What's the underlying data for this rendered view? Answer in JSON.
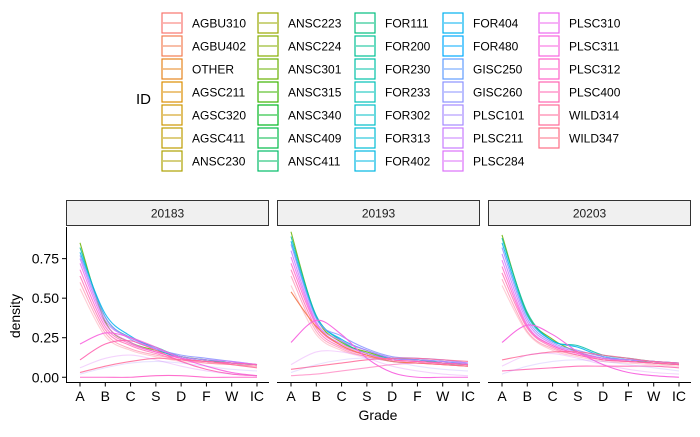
{
  "chart_data": {
    "type": "area",
    "legend": {
      "title": "ID",
      "position": "top",
      "entries": [
        {
          "label": "AGBU310",
          "color": "#F8766D"
        },
        {
          "label": "AGBU402",
          "color": "#F27D52"
        },
        {
          "label": "OTHER",
          "color": "#E7851E"
        },
        {
          "label": "AGSC211",
          "color": "#DB8E00"
        },
        {
          "label": "AGSC320",
          "color": "#CD9600"
        },
        {
          "label": "AGSC411",
          "color": "#BE9C00"
        },
        {
          "label": "ANSC230",
          "color": "#AEA200"
        },
        {
          "label": "ANSC223",
          "color": "#9AA800"
        },
        {
          "label": "ANSC224",
          "color": "#85AD00"
        },
        {
          "label": "ANSC301",
          "color": "#68B100"
        },
        {
          "label": "ANSC315",
          "color": "#3CB400"
        },
        {
          "label": "ANSC340",
          "color": "#00B81F"
        },
        {
          "label": "ANSC409",
          "color": "#00BA48"
        },
        {
          "label": "ANSC411",
          "color": "#00BC67"
        },
        {
          "label": "FOR111",
          "color": "#00BE7F"
        },
        {
          "label": "FOR200",
          "color": "#00C094"
        },
        {
          "label": "FOR230",
          "color": "#00C0A7"
        },
        {
          "label": "FOR233",
          "color": "#00C0B8"
        },
        {
          "label": "FOR302",
          "color": "#00BFC7"
        },
        {
          "label": "FOR313",
          "color": "#00BCD6"
        },
        {
          "label": "FOR402",
          "color": "#00B8E3"
        },
        {
          "label": "FOR404",
          "color": "#00B2F0"
        },
        {
          "label": "FOR480",
          "color": "#00ABFD"
        },
        {
          "label": "GISC250",
          "color": "#619CFF"
        },
        {
          "label": "GISC260",
          "color": "#8B93FF"
        },
        {
          "label": "PLSC101",
          "color": "#A58AFF"
        },
        {
          "label": "PLSC211",
          "color": "#C77CFF"
        },
        {
          "label": "PLSC284",
          "color": "#DC71FA"
        },
        {
          "label": "PLSC310",
          "color": "#EC69EF"
        },
        {
          "label": "PLSC311",
          "color": "#F863DF"
        },
        {
          "label": "PLSC312",
          "color": "#FF61C9"
        },
        {
          "label": "PLSC400",
          "color": "#FF64B0"
        },
        {
          "label": "WILD314",
          "color": "#FF6A98"
        },
        {
          "label": "WILD347",
          "color": "#FD6F85"
        }
      ]
    },
    "xlabel": "Grade",
    "ylabel": "density",
    "x_categories": [
      "A",
      "B",
      "C",
      "S",
      "D",
      "F",
      "W",
      "IC"
    ],
    "yticks": [
      0.0,
      0.25,
      0.5,
      0.75
    ],
    "ytick_labels": [
      "0.00",
      "0.25",
      "0.50",
      "0.75"
    ],
    "ylim": [
      -0.03,
      0.95
    ],
    "grid": false,
    "panels": [
      {
        "label": "20183",
        "series": [
          {
            "name": "ANSC301",
            "color": "#68B100",
            "opacity": 0.85,
            "values": [
              0.85,
              0.35,
              0.22,
              0.17,
              0.13,
              0.11,
              0.09,
              0.08
            ]
          },
          {
            "name": "FOR230",
            "color": "#00C0A7",
            "opacity": 0.85,
            "values": [
              0.82,
              0.38,
              0.25,
              0.19,
              0.13,
              0.11,
              0.09,
              0.08
            ]
          },
          {
            "name": "FOR404",
            "color": "#00B2F0",
            "opacity": 0.85,
            "values": [
              0.79,
              0.4,
              0.26,
              0.18,
              0.12,
              0.1,
              0.09,
              0.08
            ]
          },
          {
            "name": "GISC260",
            "color": "#8B93FF",
            "opacity": 0.85,
            "values": [
              0.77,
              0.38,
              0.24,
              0.18,
              0.14,
              0.12,
              0.1,
              0.08
            ]
          },
          {
            "name": "PLSC211",
            "color": "#C77CFF",
            "opacity": 0.85,
            "values": [
              0.75,
              0.36,
              0.25,
              0.18,
              0.13,
              0.11,
              0.1,
              0.08
            ]
          },
          {
            "name": "PLSC310",
            "color": "#EC69EF",
            "opacity": 0.8,
            "values": [
              0.72,
              0.34,
              0.22,
              0.16,
              0.12,
              0.1,
              0.09,
              0.08
            ]
          },
          {
            "name": "PLSC312",
            "color": "#FF61C9",
            "opacity": 0.8,
            "values": [
              0.68,
              0.32,
              0.21,
              0.16,
              0.12,
              0.1,
              0.09,
              0.08
            ]
          },
          {
            "name": "PLSC400",
            "color": "#FF64B0",
            "opacity": 0.75,
            "values": [
              0.64,
              0.3,
              0.2,
              0.15,
              0.11,
              0.1,
              0.09,
              0.08
            ]
          },
          {
            "name": "WILD314",
            "color": "#FF6A98",
            "opacity": 0.55,
            "values": [
              0.6,
              0.28,
              0.18,
              0.14,
              0.11,
              0.09,
              0.08,
              0.07
            ]
          },
          {
            "name": "WILD347",
            "color": "#FD6F85",
            "opacity": 0.35,
            "values": [
              0.56,
              0.26,
              0.17,
              0.13,
              0.1,
              0.09,
              0.08,
              0.07
            ]
          },
          {
            "name": "PLSC311",
            "color": "#F863DF",
            "opacity": 0.9,
            "values": [
              0.21,
              0.28,
              0.25,
              0.19,
              0.12,
              0.07,
              0.03,
              0.01
            ]
          },
          {
            "name": "PLSC400",
            "color": "#FF64B0",
            "opacity": 0.9,
            "values": [
              0.11,
              0.21,
              0.23,
              0.17,
              0.1,
              0.05,
              0.02,
              0.01
            ]
          },
          {
            "name": "WILD314",
            "color": "#FF6A98",
            "opacity": 0.85,
            "values": [
              0.03,
              0.07,
              0.1,
              0.12,
              0.11,
              0.1,
              0.08,
              0.06
            ]
          },
          {
            "name": "PLSC312",
            "color": "#FF61C9",
            "opacity": 0.9,
            "values": [
              0.0,
              0.0,
              0.0,
              0.01,
              0.01,
              0.0,
              0.0,
              0.0
            ]
          },
          {
            "name": "PLSC284",
            "color": "#DC71FA",
            "opacity": 0.3,
            "values": [
              0.06,
              0.12,
              0.14,
              0.11,
              0.07,
              0.04,
              0.02,
              0.01
            ]
          },
          {
            "name": "PLSC101",
            "color": "#A58AFF",
            "opacity": 0.25,
            "values": [
              0.02,
              0.06,
              0.09,
              0.1,
              0.09,
              0.07,
              0.05,
              0.04
            ]
          }
        ]
      },
      {
        "label": "20193",
        "series": [
          {
            "name": "ANSC301",
            "color": "#68B100",
            "opacity": 0.85,
            "values": [
              0.92,
              0.38,
              0.22,
              0.16,
              0.12,
              0.11,
              0.09,
              0.08
            ]
          },
          {
            "name": "FOR230",
            "color": "#00C0A7",
            "opacity": 0.85,
            "values": [
              0.89,
              0.39,
              0.23,
              0.15,
              0.12,
              0.11,
              0.09,
              0.08
            ]
          },
          {
            "name": "FOR404",
            "color": "#00B2F0",
            "opacity": 0.85,
            "values": [
              0.86,
              0.38,
              0.24,
              0.17,
              0.12,
              0.11,
              0.1,
              0.08
            ]
          },
          {
            "name": "GISC260",
            "color": "#8B93FF",
            "opacity": 0.85,
            "values": [
              0.84,
              0.37,
              0.26,
              0.18,
              0.13,
              0.12,
              0.11,
              0.09
            ]
          },
          {
            "name": "PLSC211",
            "color": "#C77CFF",
            "opacity": 0.85,
            "values": [
              0.8,
              0.35,
              0.23,
              0.17,
              0.12,
              0.11,
              0.1,
              0.09
            ]
          },
          {
            "name": "PLSC310",
            "color": "#EC69EF",
            "opacity": 0.8,
            "values": [
              0.76,
              0.34,
              0.21,
              0.15,
              0.11,
              0.1,
              0.09,
              0.08
            ]
          },
          {
            "name": "PLSC312",
            "color": "#FF61C9",
            "opacity": 0.8,
            "values": [
              0.72,
              0.33,
              0.2,
              0.14,
              0.11,
              0.1,
              0.09,
              0.08
            ]
          },
          {
            "name": "PLSC400",
            "color": "#FF64B0",
            "opacity": 0.75,
            "values": [
              0.68,
              0.31,
              0.19,
              0.14,
              0.11,
              0.1,
              0.09,
              0.08
            ]
          },
          {
            "name": "WILD314",
            "color": "#FF6A98",
            "opacity": 0.55,
            "values": [
              0.64,
              0.29,
              0.18,
              0.13,
              0.1,
              0.09,
              0.08,
              0.07
            ]
          },
          {
            "name": "WILD347",
            "color": "#FD6F85",
            "opacity": 0.35,
            "values": [
              0.58,
              0.27,
              0.17,
              0.13,
              0.1,
              0.09,
              0.08,
              0.07
            ]
          },
          {
            "name": "AGBU402",
            "color": "#F27D52",
            "opacity": 0.95,
            "values": [
              0.54,
              0.32,
              0.2,
              0.14,
              0.1,
              0.09,
              0.08,
              0.07
            ]
          },
          {
            "name": "PLSC311",
            "color": "#F863DF",
            "opacity": 0.95,
            "values": [
              0.22,
              0.36,
              0.27,
              0.12,
              0.03,
              0.0,
              0.0,
              0.0
            ]
          },
          {
            "name": "WILD314",
            "color": "#FF6A98",
            "opacity": 0.85,
            "values": [
              0.05,
              0.07,
              0.09,
              0.11,
              0.12,
              0.12,
              0.11,
              0.1
            ]
          },
          {
            "name": "PLSC400",
            "color": "#FF64B0",
            "opacity": 0.6,
            "values": [
              0.01,
              0.02,
              0.04,
              0.06,
              0.08,
              0.09,
              0.08,
              0.07
            ]
          },
          {
            "name": "PLSC284",
            "color": "#DC71FA",
            "opacity": 0.3,
            "values": [
              0.08,
              0.16,
              0.16,
              0.12,
              0.07,
              0.04,
              0.02,
              0.01
            ]
          },
          {
            "name": "PLSC101",
            "color": "#A58AFF",
            "opacity": 0.25,
            "values": [
              0.03,
              0.08,
              0.11,
              0.12,
              0.1,
              0.07,
              0.05,
              0.04
            ]
          }
        ]
      },
      {
        "label": "20203",
        "series": [
          {
            "name": "ANSC301",
            "color": "#68B100",
            "opacity": 0.85,
            "values": [
              0.9,
              0.4,
              0.24,
              0.16,
              0.12,
              0.11,
              0.09,
              0.08
            ]
          },
          {
            "name": "FOR230",
            "color": "#00C0A7",
            "opacity": 0.85,
            "values": [
              0.88,
              0.41,
              0.23,
              0.2,
              0.14,
              0.12,
              0.1,
              0.09
            ]
          },
          {
            "name": "FOR404",
            "color": "#00B2F0",
            "opacity": 0.85,
            "values": [
              0.85,
              0.39,
              0.23,
              0.19,
              0.13,
              0.11,
              0.1,
              0.09
            ]
          },
          {
            "name": "GISC260",
            "color": "#8B93FF",
            "opacity": 0.85,
            "values": [
              0.82,
              0.37,
              0.22,
              0.17,
              0.13,
              0.11,
              0.1,
              0.09
            ]
          },
          {
            "name": "PLSC211",
            "color": "#C77CFF",
            "opacity": 0.85,
            "values": [
              0.78,
              0.35,
              0.21,
              0.16,
              0.12,
              0.11,
              0.1,
              0.09
            ]
          },
          {
            "name": "PLSC310",
            "color": "#EC69EF",
            "opacity": 0.8,
            "values": [
              0.74,
              0.33,
              0.2,
              0.15,
              0.12,
              0.1,
              0.09,
              0.08
            ]
          },
          {
            "name": "PLSC312",
            "color": "#FF61C9",
            "opacity": 0.8,
            "values": [
              0.7,
              0.32,
              0.2,
              0.15,
              0.11,
              0.1,
              0.09,
              0.08
            ]
          },
          {
            "name": "PLSC400",
            "color": "#FF64B0",
            "opacity": 0.75,
            "values": [
              0.66,
              0.31,
              0.19,
              0.14,
              0.11,
              0.1,
              0.09,
              0.08
            ]
          },
          {
            "name": "WILD314",
            "color": "#FF6A98",
            "opacity": 0.55,
            "values": [
              0.62,
              0.29,
              0.18,
              0.14,
              0.11,
              0.1,
              0.09,
              0.08
            ]
          },
          {
            "name": "WILD347",
            "color": "#FD6F85",
            "opacity": 0.35,
            "values": [
              0.58,
              0.28,
              0.17,
              0.13,
              0.1,
              0.09,
              0.08,
              0.07
            ]
          },
          {
            "name": "PLSC311",
            "color": "#F863DF",
            "opacity": 0.95,
            "values": [
              0.22,
              0.33,
              0.27,
              0.16,
              0.08,
              0.03,
              0.01,
              0.0
            ]
          },
          {
            "name": "WILD314",
            "color": "#FF6A98",
            "opacity": 0.85,
            "values": [
              0.11,
              0.14,
              0.16,
              0.16,
              0.14,
              0.12,
              0.1,
              0.09
            ]
          },
          {
            "name": "PLSC400",
            "color": "#FF64B0",
            "opacity": 0.85,
            "values": [
              0.04,
              0.05,
              0.06,
              0.07,
              0.07,
              0.07,
              0.07,
              0.06
            ]
          },
          {
            "name": "PLSC284",
            "color": "#DC71FA",
            "opacity": 0.3,
            "values": [
              0.07,
              0.14,
              0.15,
              0.12,
              0.08,
              0.05,
              0.03,
              0.02
            ]
          },
          {
            "name": "PLSC101",
            "color": "#A58AFF",
            "opacity": 0.25,
            "values": [
              0.02,
              0.07,
              0.1,
              0.11,
              0.1,
              0.08,
              0.06,
              0.04
            ]
          }
        ]
      }
    ]
  }
}
